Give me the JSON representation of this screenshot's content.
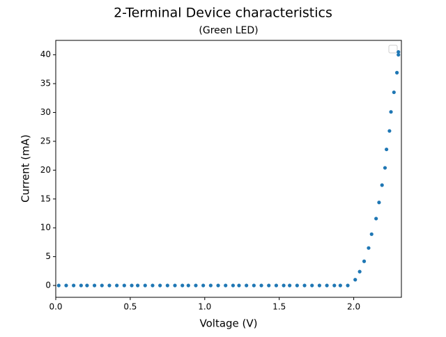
{
  "chart_data": {
    "type": "scatter",
    "title": "2-Terminal Device characteristics",
    "subtitle": "(Green LED)",
    "x_label": "Voltage (V)",
    "y_label": "Current (mA)",
    "color": "#1f77b4",
    "x": [
      0.02,
      0.07,
      0.12,
      0.17,
      0.21,
      0.26,
      0.31,
      0.36,
      0.41,
      0.46,
      0.51,
      0.55,
      0.6,
      0.65,
      0.7,
      0.75,
      0.8,
      0.85,
      0.89,
      0.94,
      0.99,
      1.04,
      1.09,
      1.14,
      1.19,
      1.23,
      1.28,
      1.33,
      1.38,
      1.43,
      1.48,
      1.53,
      1.57,
      1.62,
      1.67,
      1.72,
      1.77,
      1.82,
      1.87,
      1.91,
      1.96,
      2.01,
      2.04,
      2.07,
      2.1,
      2.12,
      2.15,
      2.17,
      2.19,
      2.21,
      2.22,
      2.24,
      2.25,
      2.27,
      2.29,
      2.3,
      2.3
    ],
    "values": [
      0,
      0,
      0,
      0,
      0,
      0,
      0,
      0,
      0,
      0,
      0,
      0,
      0,
      0,
      0,
      0,
      0,
      0,
      0,
      0,
      0,
      0,
      0,
      0,
      0,
      0,
      0,
      0,
      0,
      0,
      0,
      0,
      0,
      0,
      0,
      0,
      0,
      0,
      0,
      0,
      0,
      1.0,
      2.4,
      4.2,
      6.5,
      8.9,
      11.6,
      14.4,
      17.4,
      20.4,
      23.6,
      26.8,
      30.1,
      33.5,
      36.9,
      40.0,
      40.5
    ],
    "xlim": [
      0,
      2.32
    ],
    "ylim": [
      -2.05,
      42.5
    ],
    "xticks": [
      {
        "value": 0,
        "label": "0.0"
      },
      0.5,
      {
        "value": 1,
        "label": "1.0"
      },
      1.5,
      {
        "value": 2,
        "label": "2.0"
      }
    ],
    "yticks": [
      0,
      5,
      10,
      15,
      20,
      25,
      30,
      35,
      40
    ]
  }
}
